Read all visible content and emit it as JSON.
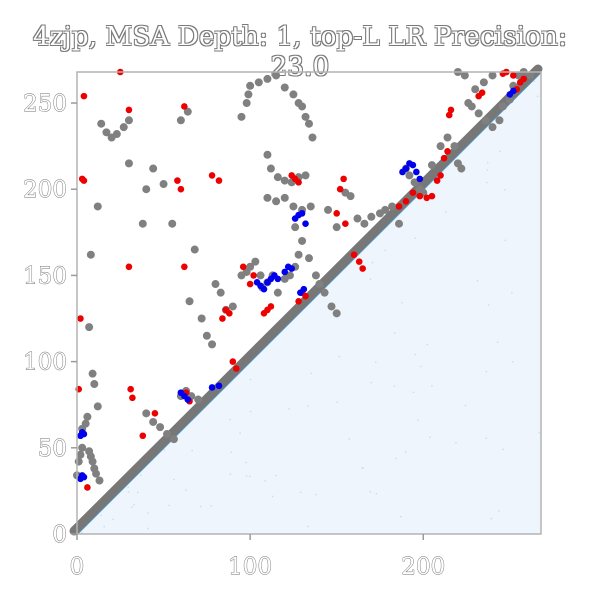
{
  "chart_data": {
    "type": "scatter",
    "title": "4zjp, MSA Depth: 1, top-L LR Precision: 23.0",
    "xlim": [
      0,
      268
    ],
    "ylim": [
      0,
      268
    ],
    "xticks": [
      "0",
      "100",
      "200"
    ],
    "yticks": [
      "0",
      "50",
      "100",
      "150",
      "200",
      "250"
    ],
    "grid": false,
    "lower_triangle": "light blue predicted contact map",
    "colors": {
      "diagonal": "#777777",
      "gray_contacts": "#808080",
      "red_contacts": "#ee0000",
      "blue_contacts": "#0000ee",
      "lower_fill": "#eef5fc",
      "diag_line": "#4aa0d8",
      "axis": "#b3b3b3"
    },
    "series": [
      {
        "color_key": "gray_contacts",
        "points": [
          [
            0,
            34
          ],
          [
            1,
            42
          ],
          [
            2,
            46
          ],
          [
            3,
            50
          ],
          [
            3,
            61
          ],
          [
            5,
            64
          ],
          [
            6,
            68
          ],
          [
            7,
            48
          ],
          [
            8,
            45
          ],
          [
            9,
            42
          ],
          [
            10,
            38
          ],
          [
            11,
            35
          ],
          [
            13,
            31
          ],
          [
            12,
            74
          ],
          [
            10,
            87
          ],
          [
            9,
            93
          ],
          [
            7,
            120
          ],
          [
            8,
            162
          ],
          [
            12,
            190
          ],
          [
            14,
            238
          ],
          [
            17,
            233
          ],
          [
            20,
            230
          ],
          [
            23,
            232
          ],
          [
            27,
            236
          ],
          [
            30,
            240
          ],
          [
            30,
            215
          ],
          [
            40,
            70
          ],
          [
            44,
            65
          ],
          [
            48,
            62
          ],
          [
            52,
            58
          ],
          [
            56,
            55
          ],
          [
            60,
            80
          ],
          [
            63,
            83
          ],
          [
            66,
            80
          ],
          [
            70,
            78
          ],
          [
            38,
            180
          ],
          [
            40,
            200
          ],
          [
            44,
            212
          ],
          [
            50,
            203
          ],
          [
            55,
            180
          ],
          [
            60,
            240
          ],
          [
            64,
            245
          ],
          [
            68,
            165
          ],
          [
            65,
            135
          ],
          [
            72,
            125
          ],
          [
            75,
            115
          ],
          [
            78,
            110
          ],
          [
            80,
            145
          ],
          [
            83,
            140
          ],
          [
            86,
            130
          ],
          [
            90,
            132
          ],
          [
            95,
            150
          ],
          [
            98,
            152
          ],
          [
            100,
            155
          ],
          [
            103,
            158
          ],
          [
            106,
            150
          ],
          [
            107,
            143
          ],
          [
            110,
            146
          ],
          [
            113,
            150
          ],
          [
            116,
            140
          ],
          [
            120,
            148
          ],
          [
            123,
            150
          ],
          [
            126,
            155
          ],
          [
            128,
            162
          ],
          [
            95,
            242
          ],
          [
            98,
            250
          ],
          [
            99,
            255
          ],
          [
            100,
            260
          ],
          [
            105,
            262
          ],
          [
            110,
            264
          ],
          [
            115,
            266
          ],
          [
            120,
            259
          ],
          [
            125,
            255
          ],
          [
            128,
            250
          ],
          [
            130,
            248
          ],
          [
            132,
            242
          ],
          [
            134,
            238
          ],
          [
            136,
            230
          ],
          [
            110,
            220
          ],
          [
            112,
            212
          ],
          [
            116,
            207
          ],
          [
            120,
            205
          ],
          [
            124,
            204
          ],
          [
            128,
            207
          ],
          [
            132,
            208
          ],
          [
            110,
            195
          ],
          [
            115,
            193
          ],
          [
            120,
            195
          ],
          [
            125,
            190
          ],
          [
            130,
            188
          ],
          [
            135,
            190
          ],
          [
            145,
            188
          ],
          [
            150,
            178
          ],
          [
            126,
            178
          ],
          [
            130,
            170
          ],
          [
            134,
            160
          ],
          [
            138,
            150
          ],
          [
            140,
            145
          ],
          [
            143,
            140
          ],
          [
            147,
            132
          ],
          [
            150,
            128
          ],
          [
            155,
            198
          ],
          [
            158,
            196
          ],
          [
            162,
            183
          ],
          [
            166,
            180
          ],
          [
            170,
            184
          ],
          [
            175,
            186
          ],
          [
            178,
            188
          ],
          [
            182,
            190
          ],
          [
            186,
            180
          ],
          [
            190,
            212
          ],
          [
            192,
            208
          ],
          [
            195,
            204
          ],
          [
            198,
            200
          ],
          [
            200,
            198
          ],
          [
            205,
            214
          ],
          [
            210,
            225
          ],
          [
            214,
            230
          ],
          [
            218,
            225
          ],
          [
            220,
            215
          ],
          [
            222,
            212
          ],
          [
            226,
            250
          ],
          [
            228,
            248
          ],
          [
            232,
            244
          ],
          [
            236,
            240
          ],
          [
            240,
            236
          ],
          [
            244,
            240
          ],
          [
            246,
            248
          ],
          [
            250,
            252
          ],
          [
            252,
            260
          ],
          [
            255,
            266
          ],
          [
            258,
            268
          ],
          [
            262,
            266
          ],
          [
            240,
            266
          ],
          [
            235,
            262
          ],
          [
            230,
            258
          ],
          [
            224,
            266
          ],
          [
            220,
            268
          ]
        ]
      },
      {
        "color_key": "red_contacts",
        "points": [
          [
            1,
            84
          ],
          [
            2,
            125
          ],
          [
            3,
            206
          ],
          [
            4,
            205
          ],
          [
            4,
            254
          ],
          [
            6,
            27
          ],
          [
            25,
            268
          ],
          [
            30,
            246
          ],
          [
            30,
            155
          ],
          [
            31,
            84
          ],
          [
            32,
            79
          ],
          [
            38,
            57
          ],
          [
            45,
            70
          ],
          [
            58,
            205
          ],
          [
            60,
            200
          ],
          [
            62,
            155
          ],
          [
            62,
            248
          ],
          [
            63,
            82
          ],
          [
            65,
            77
          ],
          [
            78,
            208
          ],
          [
            82,
            205
          ],
          [
            84,
            125
          ],
          [
            86,
            130
          ],
          [
            88,
            128
          ],
          [
            90,
            100
          ],
          [
            92,
            96
          ],
          [
            96,
            155
          ],
          [
            100,
            145
          ],
          [
            102,
            150
          ],
          [
            108,
            128
          ],
          [
            110,
            130
          ],
          [
            112,
            132
          ],
          [
            124,
            208
          ],
          [
            126,
            206
          ],
          [
            128,
            204
          ],
          [
            128,
            135
          ],
          [
            130,
            140
          ],
          [
            132,
            138
          ],
          [
            150,
            186
          ],
          [
            152,
            200
          ],
          [
            154,
            206
          ],
          [
            155,
            180
          ],
          [
            160,
            162
          ],
          [
            163,
            158
          ],
          [
            165,
            154
          ],
          [
            186,
            190
          ],
          [
            190,
            193
          ],
          [
            194,
            198
          ],
          [
            198,
            196
          ],
          [
            202,
            195
          ],
          [
            205,
            196
          ],
          [
            208,
            205
          ],
          [
            210,
            208
          ],
          [
            212,
            218
          ],
          [
            214,
            222
          ],
          [
            215,
            243
          ],
          [
            216,
            246
          ],
          [
            232,
            254
          ],
          [
            234,
            256
          ],
          [
            246,
            267
          ],
          [
            248,
            268
          ],
          [
            252,
            266
          ],
          [
            254,
            258
          ],
          [
            256,
            262
          ],
          [
            258,
            264
          ]
        ]
      },
      {
        "color_key": "blue_contacts",
        "points": [
          [
            2,
            57
          ],
          [
            3,
            59
          ],
          [
            4,
            58
          ],
          [
            2,
            32
          ],
          [
            3,
            34
          ],
          [
            4,
            33
          ],
          [
            60,
            82
          ],
          [
            62,
            80
          ],
          [
            64,
            78
          ],
          [
            78,
            85
          ],
          [
            82,
            86
          ],
          [
            104,
            146
          ],
          [
            106,
            144
          ],
          [
            108,
            142
          ],
          [
            110,
            146
          ],
          [
            112,
            148
          ],
          [
            114,
            150
          ],
          [
            116,
            148
          ],
          [
            120,
            152
          ],
          [
            122,
            155
          ],
          [
            124,
            154
          ],
          [
            126,
            183
          ],
          [
            128,
            185
          ],
          [
            130,
            186
          ],
          [
            132,
            180
          ],
          [
            129,
            140
          ],
          [
            131,
            142
          ],
          [
            188,
            210
          ],
          [
            190,
            212
          ],
          [
            192,
            215
          ],
          [
            194,
            214
          ],
          [
            196,
            210
          ],
          [
            198,
            206
          ],
          [
            250,
            255
          ],
          [
            252,
            257
          ]
        ]
      }
    ]
  }
}
